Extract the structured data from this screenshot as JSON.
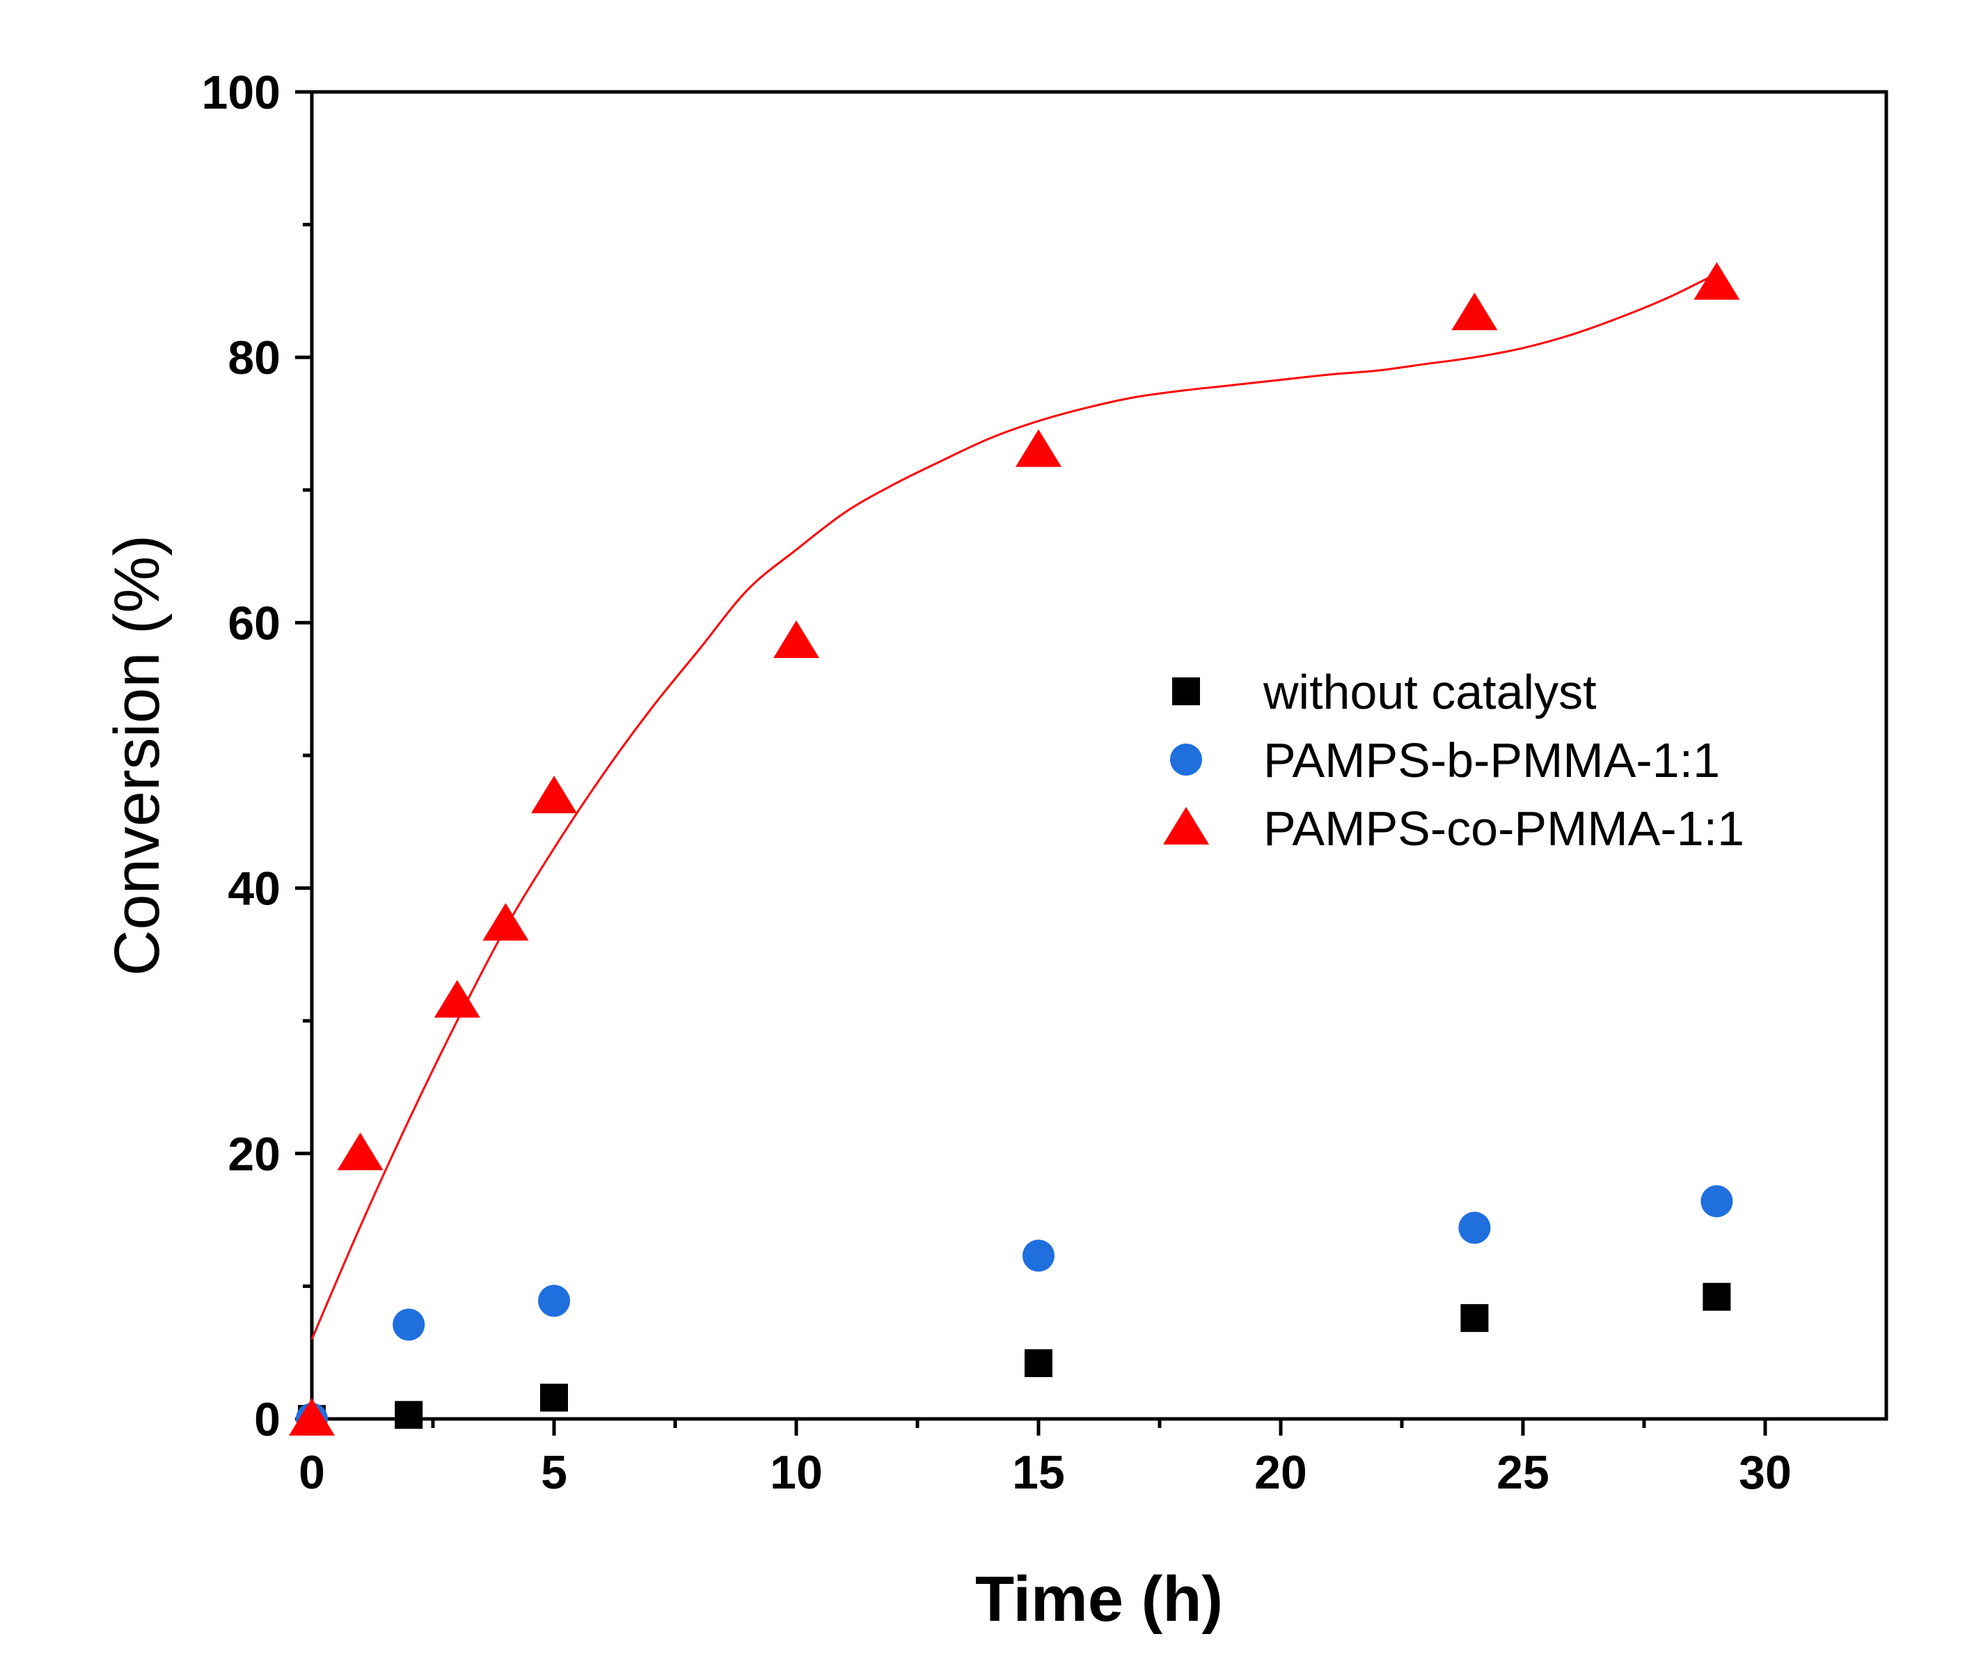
{
  "chart_data": {
    "type": "scatter",
    "xlabel": "Time (h)",
    "ylabel": "Conversion (%)",
    "xlim": [
      0,
      32.5
    ],
    "ylim": [
      0,
      100
    ],
    "x_ticks": [
      0,
      5,
      10,
      15,
      20,
      25,
      30
    ],
    "y_ticks": [
      0,
      20,
      40,
      60,
      80,
      100
    ],
    "x_minor_ticks": [
      2.5,
      7.5,
      12.5,
      17.5,
      22.5,
      27.5
    ],
    "y_minor_ticks": [
      10,
      30,
      50,
      70,
      90
    ],
    "legend_position": "center-right",
    "series": [
      {
        "name": "without catalyst",
        "marker": "square",
        "color": "#000000",
        "x": [
          0,
          2,
          5,
          15,
          24,
          29
        ],
        "y": [
          0,
          0.3,
          1.6,
          4.2,
          7.6,
          9.2
        ]
      },
      {
        "name": "PAMPS-b-PMMA-1:1",
        "marker": "circle",
        "color": "#1f6fdf",
        "x": [
          0,
          2,
          5,
          15,
          24,
          29
        ],
        "y": [
          0,
          7.1,
          8.9,
          12.3,
          14.4,
          16.4
        ]
      },
      {
        "name": "PAMPS-co-PMMA-1:1",
        "marker": "triangle",
        "color": "#ff0000",
        "x": [
          0,
          1,
          3,
          4,
          5,
          10,
          15,
          24,
          29
        ],
        "y": [
          0,
          20,
          31.5,
          37.3,
          46.9,
          58.6,
          73,
          83.3,
          85.6
        ]
      }
    ],
    "fit_curve": {
      "series": "PAMPS-co-PMMA-1:1",
      "color": "#ff0000",
      "x": [
        0,
        1,
        2,
        3,
        4,
        5,
        6,
        7,
        8,
        9,
        10,
        11,
        12,
        13,
        14,
        15,
        16,
        17,
        18,
        19,
        20,
        21,
        22,
        23,
        24,
        25,
        26,
        27,
        28,
        29
      ],
      "y": [
        6,
        14.5,
        22.5,
        30,
        37,
        43,
        48.5,
        53.5,
        58,
        62.5,
        65.5,
        68.3,
        70.4,
        72.2,
        73.9,
        75.2,
        76.2,
        77,
        77.5,
        77.9,
        78.3,
        78.7,
        79,
        79.5,
        80,
        80.7,
        81.7,
        83,
        84.5,
        86.3
      ]
    }
  }
}
